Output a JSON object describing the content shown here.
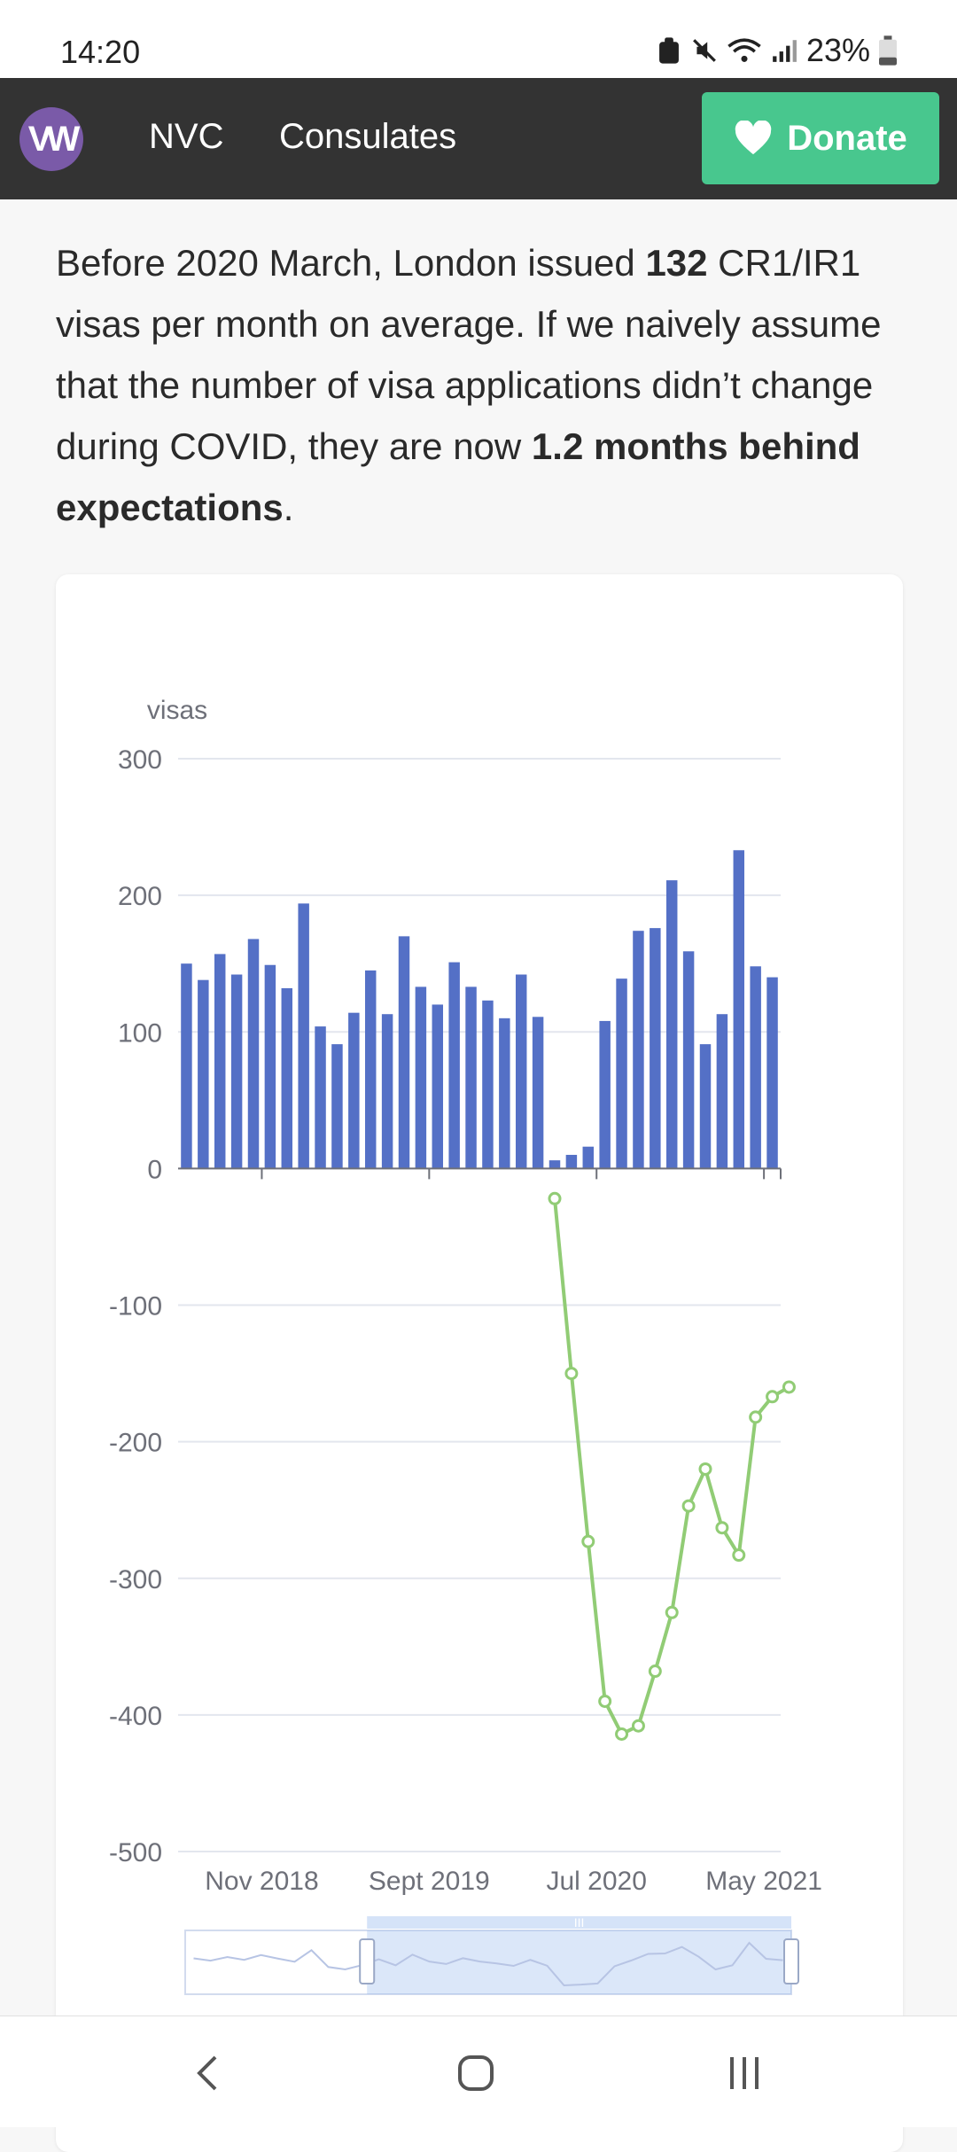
{
  "status_bar": {
    "time": "14:20",
    "battery": "23%"
  },
  "nav": {
    "logo": "VW",
    "links": [
      "NVC",
      "Consulates"
    ],
    "donate_label": "Donate"
  },
  "intro": {
    "t1": "Before 2020 March, London issued ",
    "b1": "132",
    "t2": " CR1/IR1 visas per month on average. If we naively assume that the number of visa applications didn’t change during COVID, they are now ",
    "b2": "1.2 months behind expectations",
    "t3": "."
  },
  "chart_data": {
    "type": "bar",
    "title": "",
    "ylabel": "visas",
    "ylim": [
      -500,
      300
    ],
    "yticks": [
      300,
      200,
      100,
      0,
      -100,
      -200,
      -300,
      -400,
      -500
    ],
    "xticks": [
      "Nov 2018",
      "Sept 2019",
      "Jul 2020",
      "May 2021"
    ],
    "grid": true,
    "colors": {
      "bars": "#5470c6",
      "line": "#91cc75"
    },
    "series": [
      {
        "type": "bar",
        "values": [
          150,
          138,
          157,
          142,
          168,
          149,
          132,
          194,
          104,
          91,
          114,
          145,
          113,
          170,
          133,
          120,
          151,
          133,
          123,
          110,
          142,
          111,
          6,
          10,
          16,
          108,
          139,
          174,
          176,
          211,
          159,
          91,
          113,
          233,
          148,
          140
        ]
      },
      {
        "type": "line",
        "start_index": 22,
        "values": [
          -22,
          -150,
          -273,
          -390,
          -414,
          -408,
          -368,
          -325,
          -247,
          -220,
          -263,
          -283,
          -182,
          -167,
          -160
        ]
      }
    ],
    "data_zoom": {
      "range_start": 0.3,
      "range_end": 1.0
    }
  }
}
